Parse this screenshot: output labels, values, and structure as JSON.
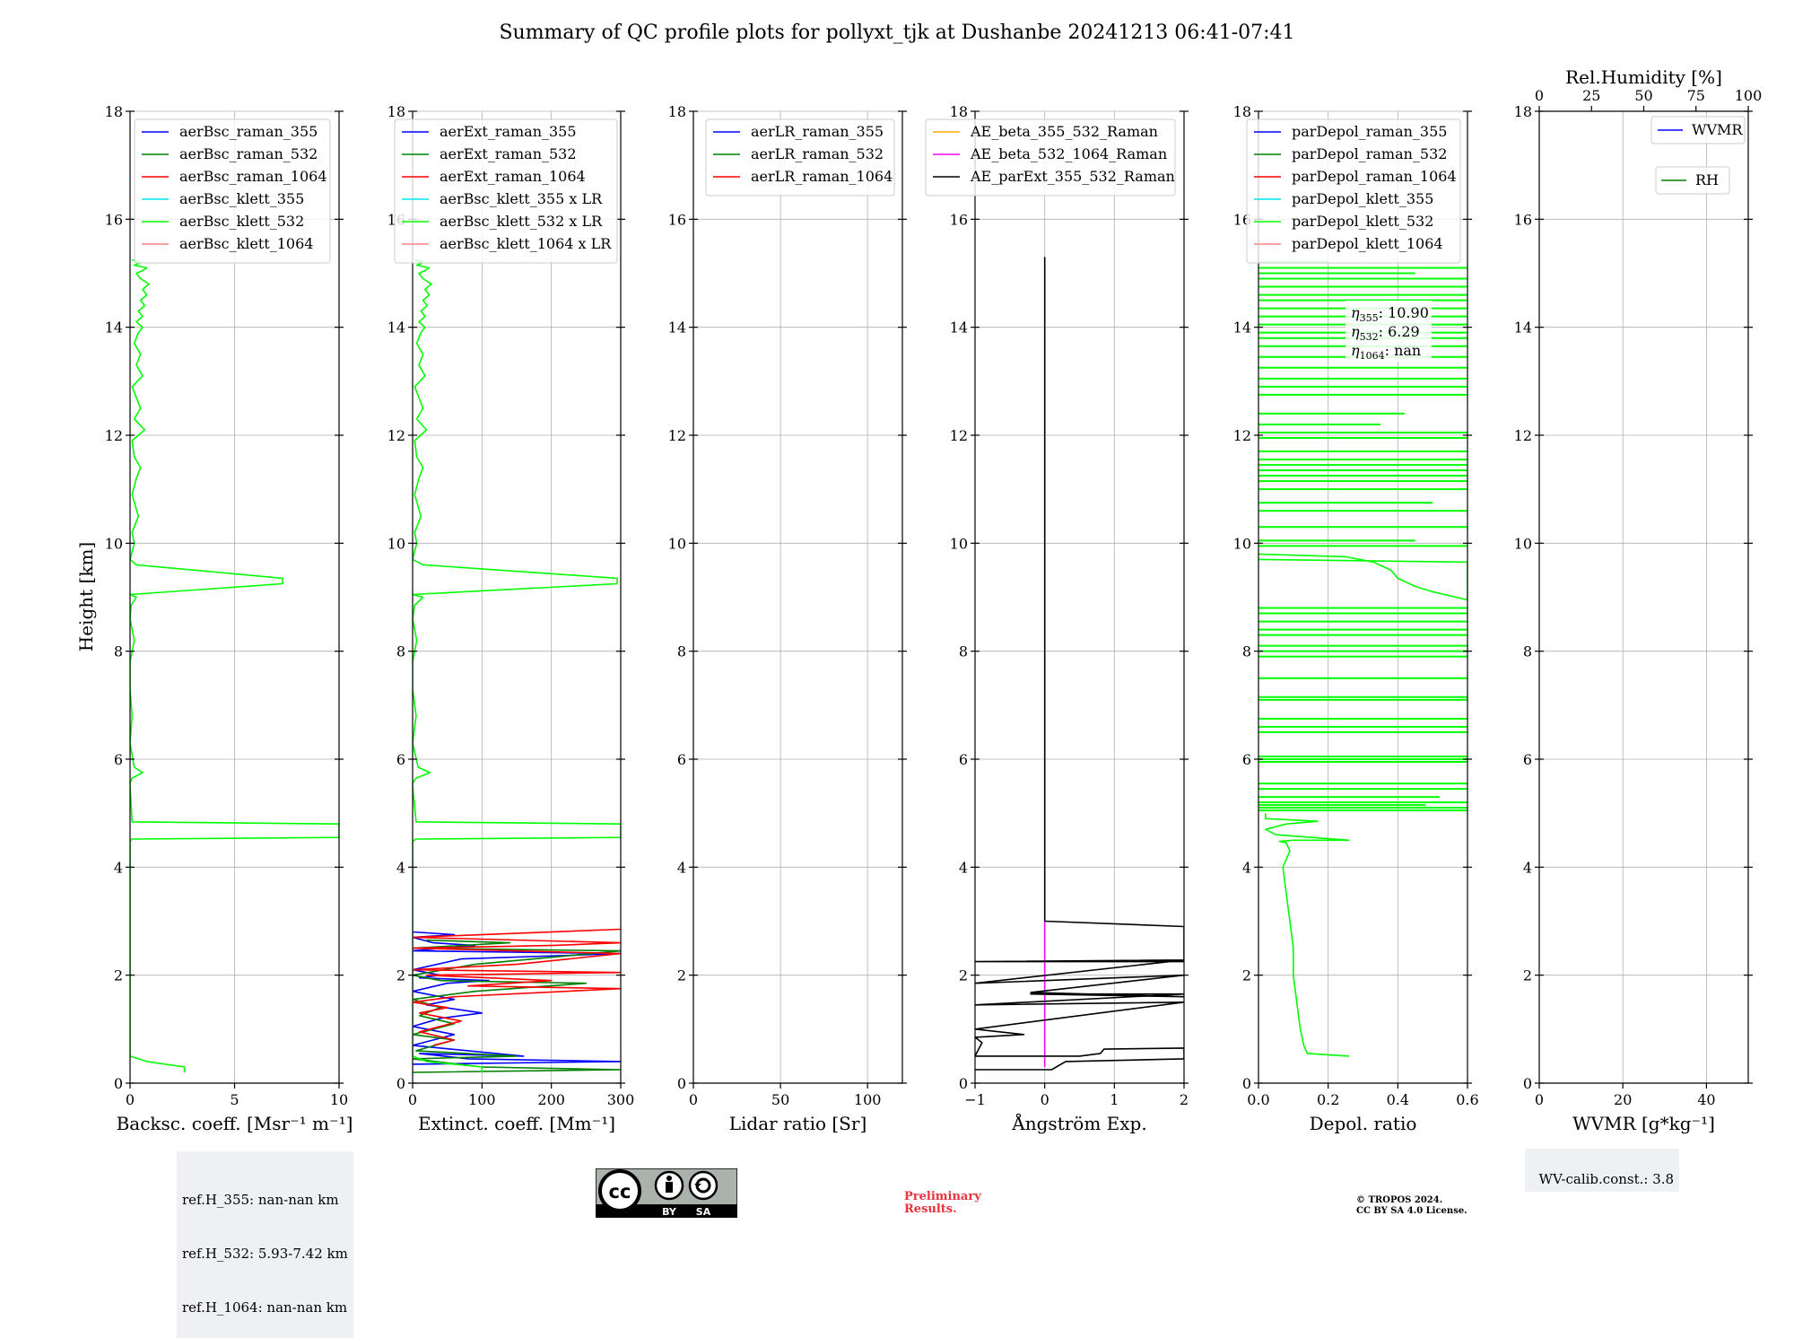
{
  "title": "Summary of QC profile plots for pollyxt_tjk at Dushanbe 20241213 06:41-07:41",
  "ylabel": "Height [km]",
  "refh": [
    "ref.H_355: nan-nan km",
    "ref.H_532: 5.93-7.42 km",
    "ref.H_1064: nan-nan km"
  ],
  "wv_calib": "WV-calib.const.: 3.8",
  "preliminary": [
    "Preliminary",
    "Results."
  ],
  "copyright": [
    "© TROPOS 2024.",
    "CC BY SA 4.0 License."
  ],
  "license_badge": {
    "cc": "cc",
    "by": "BY",
    "sa": "SA"
  },
  "colors": {
    "raman_355": "#0000ff",
    "raman_532": "#008000",
    "raman_1064": "#ff0000",
    "klett_355": "#00e5ee",
    "klett_532": "#00ff00",
    "klett_1064": "#ff8080",
    "ae_355_532": "#ffa500",
    "ae_532_1064": "#ff00ff",
    "ae_ext": "#000000"
  },
  "chart_data": [
    {
      "type": "line",
      "id": "bsc",
      "xlabel": "Backsc. coeff. [Msr⁻¹ m⁻¹]",
      "xlim": [
        0,
        10
      ],
      "xticks": [
        0,
        5,
        10
      ],
      "ylim": [
        0,
        18
      ],
      "yticks": [
        0,
        2,
        4,
        6,
        8,
        10,
        12,
        14,
        16,
        18
      ],
      "grid": true,
      "legend": {
        "position": "top",
        "entries": [
          "aerBsc_raman_355",
          "aerBsc_raman_532",
          "aerBsc_raman_1064",
          "aerBsc_klett_355",
          "aerBsc_klett_532",
          "aerBsc_klett_1064"
        ]
      },
      "series": [
        {
          "name": "aerBsc_klett_532",
          "color": "#00ff00",
          "x": [
            2.6,
            2.6,
            0.8,
            0,
            0,
            0,
            0.1,
            10,
            10,
            0.1,
            0,
            0,
            0.1,
            0.6,
            0.2,
            0,
            0.1,
            0,
            0,
            0.2,
            0,
            0.05,
            0.3,
            0,
            7.3,
            7.3,
            0.3,
            0,
            0.2,
            0.1,
            0.4,
            0.1,
            0.3,
            0.5,
            0.2,
            0.1,
            0.7,
            0.2,
            0.5,
            0.3,
            0.1,
            0.6,
            0.3,
            0.5,
            0.2,
            0.4,
            0.6,
            0.3,
            0.6,
            0.4,
            0.7,
            0.5,
            0.8,
            0.6,
            0.9,
            0.5,
            0.3,
            0.6,
            0.8,
            0.2,
            0.5,
            0.1
          ],
          "y": [
            0.2,
            0.3,
            0.4,
            0.5,
            3.0,
            4.48,
            4.52,
            4.55,
            4.8,
            4.84,
            5.5,
            5.55,
            5.65,
            5.75,
            5.85,
            6.3,
            6.8,
            7.3,
            7.8,
            8.2,
            8.6,
            8.85,
            9.0,
            9.05,
            9.25,
            9.35,
            9.6,
            9.7,
            10.0,
            10.2,
            10.5,
            10.9,
            11.2,
            11.4,
            11.6,
            11.9,
            12.1,
            12.3,
            12.5,
            12.7,
            12.9,
            13.1,
            13.3,
            13.5,
            13.7,
            13.9,
            14.0,
            14.1,
            14.2,
            14.3,
            14.4,
            14.5,
            14.6,
            14.7,
            14.8,
            14.9,
            15.0,
            15.05,
            15.1,
            15.15,
            15.2,
            15.25
          ]
        }
      ]
    },
    {
      "type": "line",
      "id": "ext",
      "xlabel": "Extinct. coeff. [Mm⁻¹]",
      "xlim": [
        0,
        300
      ],
      "xticks": [
        0,
        100,
        200,
        300
      ],
      "ylim": [
        0,
        18
      ],
      "yticks": [
        0,
        2,
        4,
        6,
        8,
        10,
        12,
        14,
        16,
        18
      ],
      "grid": true,
      "legend": {
        "position": "top",
        "entries": [
          "aerExt_raman_355",
          "aerExt_raman_532",
          "aerExt_raman_1064",
          "aerBsc_klett_355 x LR",
          "aerBsc_klett_532 x LR",
          "aerBsc_klett_1064 x LR"
        ]
      },
      "series": [
        {
          "name": "aerExt_raman_355",
          "color": "#0000ff",
          "x": [
            0,
            300,
            80,
            10,
            160,
            0,
            60,
            0,
            40,
            100,
            20,
            60,
            0,
            50,
            110,
            10,
            40,
            0,
            70,
            300,
            0,
            90,
            30,
            0,
            60,
            0
          ],
          "y": [
            0.35,
            0.4,
            0.45,
            0.55,
            0.5,
            0.7,
            0.9,
            1.05,
            1.2,
            1.3,
            1.45,
            1.55,
            1.7,
            1.85,
            1.9,
            1.95,
            2.0,
            2.1,
            2.3,
            2.4,
            2.45,
            2.55,
            2.6,
            2.7,
            2.75,
            2.8
          ]
        },
        {
          "name": "aerExt_raman_532",
          "color": "#008000",
          "x": [
            0,
            300,
            100,
            0,
            150,
            5,
            60,
            0,
            30,
            60,
            10,
            40,
            0,
            90,
            250,
            40,
            0,
            90,
            300,
            0,
            140,
            20
          ],
          "y": [
            0.2,
            0.25,
            0.3,
            0.45,
            0.5,
            0.6,
            0.8,
            0.9,
            1.0,
            1.1,
            1.25,
            1.4,
            1.55,
            1.7,
            1.85,
            1.9,
            2.0,
            2.2,
            2.45,
            2.5,
            2.6,
            2.65
          ]
        },
        {
          "name": "aerExt_raman_1064",
          "color": "#ff0000",
          "x": [
            30,
            60,
            10,
            40,
            70,
            10,
            50,
            0,
            60,
            300,
            80,
            200,
            20,
            300,
            0,
            150,
            300,
            0,
            200,
            300,
            0,
            300
          ],
          "y": [
            0.7,
            0.8,
            0.95,
            1.05,
            1.15,
            1.3,
            1.4,
            1.5,
            1.6,
            1.75,
            1.8,
            1.9,
            2.0,
            2.05,
            2.1,
            2.2,
            2.4,
            2.5,
            2.55,
            2.6,
            2.7,
            2.85
          ]
        },
        {
          "name": "aerBsc_klett_532 x LR",
          "color": "#00ff00",
          "x": [
            100,
            100,
            20,
            0,
            0,
            0,
            5,
            300,
            300,
            5,
            0,
            0,
            5,
            25,
            8,
            0,
            5,
            0,
            0,
            6,
            0,
            3,
            15,
            0,
            295,
            295,
            15,
            0,
            6,
            3,
            12,
            3,
            9,
            15,
            6,
            3,
            20,
            6,
            15,
            9,
            3,
            18,
            9,
            15,
            6,
            12,
            18,
            9,
            18,
            12,
            21,
            15,
            24,
            18,
            27,
            15,
            9,
            18,
            24,
            6,
            15,
            3
          ],
          "y": [
            0.2,
            0.3,
            0.4,
            0.5,
            3.0,
            4.48,
            4.52,
            4.55,
            4.8,
            4.84,
            5.5,
            5.55,
            5.65,
            5.75,
            5.85,
            6.3,
            6.8,
            7.3,
            7.8,
            8.2,
            8.6,
            8.85,
            9.0,
            9.05,
            9.25,
            9.35,
            9.6,
            9.7,
            10.0,
            10.2,
            10.5,
            10.9,
            11.2,
            11.4,
            11.6,
            11.9,
            12.1,
            12.3,
            12.5,
            12.7,
            12.9,
            13.1,
            13.3,
            13.5,
            13.7,
            13.9,
            14.0,
            14.1,
            14.2,
            14.3,
            14.4,
            14.5,
            14.6,
            14.7,
            14.8,
            14.9,
            15.0,
            15.05,
            15.1,
            15.15,
            15.2,
            15.25
          ]
        }
      ]
    },
    {
      "type": "line",
      "id": "lr",
      "xlabel": "Lidar ratio [Sr]",
      "xlim": [
        0,
        120
      ],
      "xticks": [
        0,
        50,
        100
      ],
      "ylim": [
        0,
        18
      ],
      "yticks": [
        0,
        2,
        4,
        6,
        8,
        10,
        12,
        14,
        16,
        18
      ],
      "grid": true,
      "legend": {
        "position": "top-right",
        "entries": [
          "aerLR_raman_355",
          "aerLR_raman_532",
          "aerLR_raman_1064"
        ]
      },
      "series": []
    },
    {
      "type": "line",
      "id": "ae",
      "xlabel": "Ångström Exp.",
      "xlim": [
        -1,
        2
      ],
      "xticks": [
        -1,
        0,
        1,
        2
      ],
      "xticklabels": [
        "−1",
        "0",
        "1",
        "2"
      ],
      "ylim": [
        0,
        18
      ],
      "yticks": [
        0,
        2,
        4,
        6,
        8,
        10,
        12,
        14,
        16,
        18
      ],
      "grid": true,
      "legend": {
        "position": "top",
        "entries": [
          "AE_beta_355_532_Raman",
          "AE_beta_532_1064_Raman",
          "AE_parExt_355_532_Raman"
        ]
      },
      "series": [
        {
          "name": "AE_beta_532_1064_Raman",
          "color": "#ff00ff",
          "x": [
            0,
            0
          ],
          "y": [
            0.3,
            3.0
          ]
        },
        {
          "name": "AE_parExt_355_532_Raman",
          "color": "#000000",
          "x": [
            0,
            0,
            2,
            2,
            -1,
            2,
            -1,
            2,
            -0.2,
            2,
            -0.2,
            2,
            -1,
            2,
            -1,
            -0.3,
            -1,
            -0.9,
            -1,
            0.5,
            0.8,
            0.85,
            2,
            2,
            0.3,
            0.1,
            -1
          ],
          "y": [
            15.3,
            3.0,
            2.9,
            2.25,
            2.25,
            2.28,
            1.85,
            2.0,
            1.68,
            1.6,
            1.65,
            1.65,
            1.45,
            1.5,
            1.0,
            0.9,
            0.85,
            0.75,
            0.5,
            0.5,
            0.55,
            0.63,
            0.65,
            0.45,
            0.4,
            0.25,
            0.25
          ]
        }
      ]
    },
    {
      "type": "line",
      "id": "depol",
      "xlabel": "Depol. ratio",
      "xlim": [
        0,
        0.6
      ],
      "xticks": [
        0,
        0.2,
        0.4,
        0.6
      ],
      "xticklabels": [
        "0.0",
        "0.2",
        "0.4",
        "0.6"
      ],
      "ylim": [
        0,
        18
      ],
      "yticks": [
        0,
        2,
        4,
        6,
        8,
        10,
        12,
        14,
        16,
        18
      ],
      "grid": true,
      "legend": {
        "position": "top",
        "entries": [
          "parDepol_raman_355",
          "parDepol_raman_532",
          "parDepol_raman_1064",
          "parDepol_klett_355",
          "parDepol_klett_532",
          "parDepol_klett_1064"
        ]
      },
      "annotations": [
        {
          "sub": "355",
          "value": ": 10.90"
        },
        {
          "sub": "532",
          "value": ": 6.29"
        },
        {
          "sub": "1064",
          "value": ": nan"
        }
      ],
      "series": [
        {
          "name": "parDepol_klett_532",
          "color": "#00ff00",
          "x": [
            0.26,
            0.14,
            0.13,
            0.12,
            0.11,
            0.1,
            0.1,
            0.09,
            0.08,
            0.07,
            0.09,
            0.08,
            0.06,
            0.1,
            0.26,
            0.05,
            0.02,
            0.08,
            0.17,
            0.02,
            0.02
          ],
          "y": [
            0.5,
            0.55,
            0.7,
            1.0,
            1.5,
            2.0,
            2.5,
            3.0,
            3.5,
            4.0,
            4.3,
            4.45,
            4.48,
            4.5,
            4.5,
            4.6,
            4.7,
            4.8,
            4.85,
            4.9,
            5.0
          ]
        },
        {
          "name": "parDepol_klett_532",
          "color": "#00ff00",
          "x": [
            0.0,
            0.25,
            0.33,
            0.38,
            0.4,
            0.45,
            0.5,
            0.6,
            0.6,
            0.0
          ],
          "y": [
            9.8,
            9.75,
            9.65,
            9.5,
            9.35,
            9.2,
            9.1,
            8.95,
            9.65,
            9.7
          ]
        }
      ],
      "spikes": [
        {
          "y": 5.05,
          "x": 0.6
        },
        {
          "y": 5.1,
          "x": 0.6
        },
        {
          "y": 5.15,
          "x": 0.48
        },
        {
          "y": 5.2,
          "x": 0.6
        },
        {
          "y": 5.3,
          "x": 0.52
        },
        {
          "y": 5.45,
          "x": 0.6
        },
        {
          "y": 5.55,
          "x": 0.6
        },
        {
          "y": 5.95,
          "x": 0.6
        },
        {
          "y": 6.0,
          "x": 0.6
        },
        {
          "y": 6.05,
          "x": 0.6
        },
        {
          "y": 6.5,
          "x": 0.6
        },
        {
          "y": 6.6,
          "x": 0.6
        },
        {
          "y": 6.75,
          "x": 0.6
        },
        {
          "y": 7.1,
          "x": 0.6
        },
        {
          "y": 7.15,
          "x": 0.6
        },
        {
          "y": 7.5,
          "x": 0.6
        },
        {
          "y": 7.9,
          "x": 0.6
        },
        {
          "y": 8.0,
          "x": 0.6
        },
        {
          "y": 8.1,
          "x": 0.6
        },
        {
          "y": 8.3,
          "x": 0.6
        },
        {
          "y": 8.4,
          "x": 0.6
        },
        {
          "y": 8.55,
          "x": 0.6
        },
        {
          "y": 8.7,
          "x": 0.6
        },
        {
          "y": 8.8,
          "x": 0.6
        },
        {
          "y": 9.95,
          "x": 0.6
        },
        {
          "y": 10.05,
          "x": 0.45
        },
        {
          "y": 10.3,
          "x": 0.6
        },
        {
          "y": 10.6,
          "x": 0.6
        },
        {
          "y": 10.75,
          "x": 0.5
        },
        {
          "y": 11.0,
          "x": 0.6
        },
        {
          "y": 11.15,
          "x": 0.6
        },
        {
          "y": 11.25,
          "x": 0.6
        },
        {
          "y": 11.35,
          "x": 0.6
        },
        {
          "y": 11.45,
          "x": 0.6
        },
        {
          "y": 11.55,
          "x": 0.6
        },
        {
          "y": 11.7,
          "x": 0.6
        },
        {
          "y": 11.95,
          "x": 0.6
        },
        {
          "y": 12.05,
          "x": 0.6
        },
        {
          "y": 12.2,
          "x": 0.35
        },
        {
          "y": 12.4,
          "x": 0.42
        },
        {
          "y": 12.75,
          "x": 0.6
        },
        {
          "y": 12.9,
          "x": 0.6
        },
        {
          "y": 13.05,
          "x": 0.6
        },
        {
          "y": 13.25,
          "x": 0.6
        },
        {
          "y": 13.45,
          "x": 0.6
        },
        {
          "y": 13.65,
          "x": 0.6
        },
        {
          "y": 13.8,
          "x": 0.6
        },
        {
          "y": 13.9,
          "x": 0.6
        },
        {
          "y": 14.05,
          "x": 0.6
        },
        {
          "y": 14.2,
          "x": 0.6
        },
        {
          "y": 14.35,
          "x": 0.6
        },
        {
          "y": 14.5,
          "x": 0.6
        },
        {
          "y": 14.6,
          "x": 0.6
        },
        {
          "y": 14.75,
          "x": 0.6
        },
        {
          "y": 14.9,
          "x": 0.6
        },
        {
          "y": 15.0,
          "x": 0.45
        },
        {
          "y": 15.1,
          "x": 0.6
        },
        {
          "y": 15.2,
          "x": 0.2
        }
      ]
    },
    {
      "type": "line",
      "id": "wv",
      "xlabel": "WVMR [g*kg⁻¹]",
      "xlim": [
        0,
        50
      ],
      "xticks": [
        0,
        20,
        40
      ],
      "x2label": "Rel.Humidity [%]",
      "x2lim": [
        0,
        100
      ],
      "x2ticks": [
        0,
        25,
        50,
        75,
        100
      ],
      "ylim": [
        0,
        18
      ],
      "yticks": [
        0,
        2,
        4,
        6,
        8,
        10,
        12,
        14,
        16,
        18
      ],
      "grid": true,
      "legend": {
        "position": "top-right",
        "entries": [
          "WVMR",
          "RH"
        ]
      },
      "series": []
    }
  ]
}
